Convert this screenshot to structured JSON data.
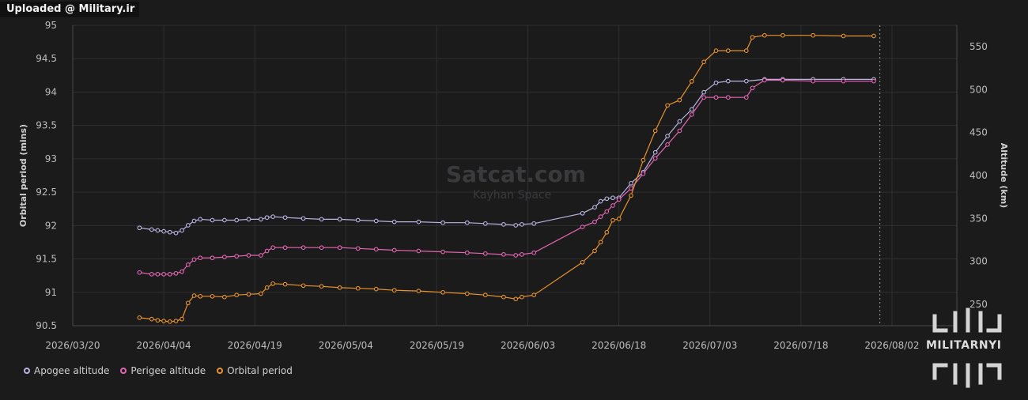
{
  "header": {
    "upload_tag": "Uploaded @ Military.ir"
  },
  "watermark": {
    "title": "Satcat.com",
    "subtitle": "Kayhan Space"
  },
  "logo": {
    "text": "MILITARNYI"
  },
  "colors": {
    "background": "#1b1b1c",
    "grid": "#2f2f31",
    "apogee": "#b9b5e4",
    "perigee": "#e466b3",
    "period": "#e8922c"
  },
  "chart_data": {
    "type": "line",
    "xlabel": "",
    "ylabel_left": "Orbital period (mins)",
    "ylabel_right": "Altitude (km)",
    "x_ticks": [
      "2026/03/20",
      "2026/04/04",
      "2026/04/19",
      "2026/05/04",
      "2026/05/19",
      "2026/06/03",
      "2026/06/18",
      "2026/07/03",
      "2026/07/18",
      "2026/08/02"
    ],
    "xlim": [
      "2026/03/20",
      "2026/08/02"
    ],
    "ylim_left": [
      90.5,
      95
    ],
    "y_ticks_left": [
      "90.5",
      "91",
      "91.5",
      "92",
      "92.5",
      "93",
      "93.5",
      "94",
      "94.5",
      "95"
    ],
    "ylim_right": [
      225,
      575
    ],
    "y_ticks_right": [
      "250",
      "300",
      "350",
      "400",
      "450",
      "500",
      "550"
    ],
    "now_line": "2026/07/31",
    "grid": true,
    "legend_position": "bottom-left",
    "series": [
      {
        "name": "Apogee altitude",
        "axis": "right",
        "points": [
          [
            "2026/03/31",
            339
          ],
          [
            "2026/04/02",
            337
          ],
          [
            "2026/04/03",
            336
          ],
          [
            "2026/04/04",
            335
          ],
          [
            "2026/04/05",
            334
          ],
          [
            "2026/04/06",
            333
          ],
          [
            "2026/04/07",
            336
          ],
          [
            "2026/04/08",
            342
          ],
          [
            "2026/04/09",
            347
          ],
          [
            "2026/04/10",
            349
          ],
          [
            "2026/04/12",
            348
          ],
          [
            "2026/04/14",
            348
          ],
          [
            "2026/04/16",
            348
          ],
          [
            "2026/04/18",
            349
          ],
          [
            "2026/04/20",
            349
          ],
          [
            "2026/04/21",
            351
          ],
          [
            "2026/04/22",
            352
          ],
          [
            "2026/04/24",
            351
          ],
          [
            "2026/04/27",
            350
          ],
          [
            "2026/04/30",
            349
          ],
          [
            "2026/05/03",
            349
          ],
          [
            "2026/05/06",
            348
          ],
          [
            "2026/05/09",
            347
          ],
          [
            "2026/05/12",
            346
          ],
          [
            "2026/05/16",
            346
          ],
          [
            "2026/05/20",
            345
          ],
          [
            "2026/05/24",
            345
          ],
          [
            "2026/05/27",
            344
          ],
          [
            "2026/05/30",
            343
          ],
          [
            "2026/06/01",
            342
          ],
          [
            "2026/06/02",
            343
          ],
          [
            "2026/06/04",
            344
          ],
          [
            "2026/06/12",
            356
          ],
          [
            "2026/06/14",
            363
          ],
          [
            "2026/06/15",
            370
          ],
          [
            "2026/06/16",
            373
          ],
          [
            "2026/06/17",
            374
          ],
          [
            "2026/06/18",
            374
          ],
          [
            "2026/06/20",
            391
          ],
          [
            "2026/06/22",
            404
          ],
          [
            "2026/06/24",
            427
          ],
          [
            "2026/06/26",
            446
          ],
          [
            "2026/06/28",
            463
          ],
          [
            "2026/06/30",
            477
          ],
          [
            "2026/07/02",
            497
          ],
          [
            "2026/07/04",
            508
          ],
          [
            "2026/07/06",
            510
          ],
          [
            "2026/07/09",
            510
          ],
          [
            "2026/07/12",
            512
          ],
          [
            "2026/07/15",
            512
          ],
          [
            "2026/07/20",
            512
          ],
          [
            "2026/07/25",
            512
          ],
          [
            "2026/07/30",
            512
          ]
        ]
      },
      {
        "name": "Perigee altitude",
        "axis": "right",
        "points": [
          [
            "2026/03/31",
            287
          ],
          [
            "2026/04/02",
            285
          ],
          [
            "2026/04/03",
            285
          ],
          [
            "2026/04/04",
            285
          ],
          [
            "2026/04/05",
            285
          ],
          [
            "2026/04/06",
            286
          ],
          [
            "2026/04/07",
            288
          ],
          [
            "2026/04/08",
            296
          ],
          [
            "2026/04/09",
            302
          ],
          [
            "2026/04/10",
            304
          ],
          [
            "2026/04/12",
            304
          ],
          [
            "2026/04/14",
            305
          ],
          [
            "2026/04/16",
            306
          ],
          [
            "2026/04/18",
            307
          ],
          [
            "2026/04/20",
            307
          ],
          [
            "2026/04/21",
            312
          ],
          [
            "2026/04/22",
            316
          ],
          [
            "2026/04/24",
            316
          ],
          [
            "2026/04/27",
            316
          ],
          [
            "2026/04/30",
            316
          ],
          [
            "2026/05/03",
            316
          ],
          [
            "2026/05/06",
            315
          ],
          [
            "2026/05/09",
            314
          ],
          [
            "2026/05/12",
            313
          ],
          [
            "2026/05/16",
            312
          ],
          [
            "2026/05/20",
            311
          ],
          [
            "2026/05/24",
            310
          ],
          [
            "2026/05/27",
            309
          ],
          [
            "2026/05/30",
            308
          ],
          [
            "2026/06/01",
            307
          ],
          [
            "2026/06/02",
            308
          ],
          [
            "2026/06/04",
            310
          ],
          [
            "2026/06/12",
            340
          ],
          [
            "2026/06/14",
            346
          ],
          [
            "2026/06/15",
            352
          ],
          [
            "2026/06/16",
            358
          ],
          [
            "2026/06/17",
            365
          ],
          [
            "2026/06/18",
            372
          ],
          [
            "2026/06/20",
            385
          ],
          [
            "2026/06/22",
            402
          ],
          [
            "2026/06/24",
            420
          ],
          [
            "2026/06/26",
            436
          ],
          [
            "2026/06/28",
            452
          ],
          [
            "2026/06/30",
            471
          ],
          [
            "2026/07/02",
            491
          ],
          [
            "2026/07/04",
            491
          ],
          [
            "2026/07/06",
            491
          ],
          [
            "2026/07/09",
            491
          ],
          [
            "2026/07/10",
            502
          ],
          [
            "2026/07/12",
            511
          ],
          [
            "2026/07/15",
            511
          ],
          [
            "2026/07/20",
            510
          ],
          [
            "2026/07/25",
            510
          ],
          [
            "2026/07/30",
            510
          ]
        ]
      },
      {
        "name": "Orbital period",
        "axis": "left",
        "points": [
          [
            "2026/03/31",
            90.62
          ],
          [
            "2026/04/02",
            90.6
          ],
          [
            "2026/04/03",
            90.58
          ],
          [
            "2026/04/04",
            90.57
          ],
          [
            "2026/04/05",
            90.56
          ],
          [
            "2026/04/06",
            90.57
          ],
          [
            "2026/04/07",
            90.6
          ],
          [
            "2026/04/08",
            90.84
          ],
          [
            "2026/04/09",
            90.95
          ],
          [
            "2026/04/10",
            90.94
          ],
          [
            "2026/04/12",
            90.94
          ],
          [
            "2026/04/14",
            90.93
          ],
          [
            "2026/04/16",
            90.96
          ],
          [
            "2026/04/18",
            90.97
          ],
          [
            "2026/04/20",
            90.98
          ],
          [
            "2026/04/21",
            91.07
          ],
          [
            "2026/04/22",
            91.13
          ],
          [
            "2026/04/24",
            91.12
          ],
          [
            "2026/04/27",
            91.1
          ],
          [
            "2026/04/30",
            91.09
          ],
          [
            "2026/05/03",
            91.07
          ],
          [
            "2026/05/06",
            91.06
          ],
          [
            "2026/05/09",
            91.05
          ],
          [
            "2026/05/12",
            91.03
          ],
          [
            "2026/05/16",
            91.02
          ],
          [
            "2026/05/20",
            91.0
          ],
          [
            "2026/05/24",
            90.98
          ],
          [
            "2026/05/27",
            90.96
          ],
          [
            "2026/05/30",
            90.93
          ],
          [
            "2026/06/01",
            90.9
          ],
          [
            "2026/06/02",
            90.93
          ],
          [
            "2026/06/04",
            90.96
          ],
          [
            "2026/06/12",
            91.45
          ],
          [
            "2026/06/14",
            91.62
          ],
          [
            "2026/06/15",
            91.75
          ],
          [
            "2026/06/16",
            91.9
          ],
          [
            "2026/06/17",
            92.08
          ],
          [
            "2026/06/18",
            92.1
          ],
          [
            "2026/06/20",
            92.45
          ],
          [
            "2026/06/22",
            92.98
          ],
          [
            "2026/06/24",
            93.42
          ],
          [
            "2026/06/26",
            93.8
          ],
          [
            "2026/06/28",
            93.88
          ],
          [
            "2026/06/30",
            94.16
          ],
          [
            "2026/07/02",
            94.45
          ],
          [
            "2026/07/04",
            94.62
          ],
          [
            "2026/07/06",
            94.62
          ],
          [
            "2026/07/09",
            94.62
          ],
          [
            "2026/07/10",
            94.82
          ],
          [
            "2026/07/12",
            94.85
          ],
          [
            "2026/07/15",
            94.85
          ],
          [
            "2026/07/20",
            94.85
          ],
          [
            "2026/07/25",
            94.84
          ],
          [
            "2026/07/30",
            94.84
          ]
        ]
      }
    ]
  }
}
